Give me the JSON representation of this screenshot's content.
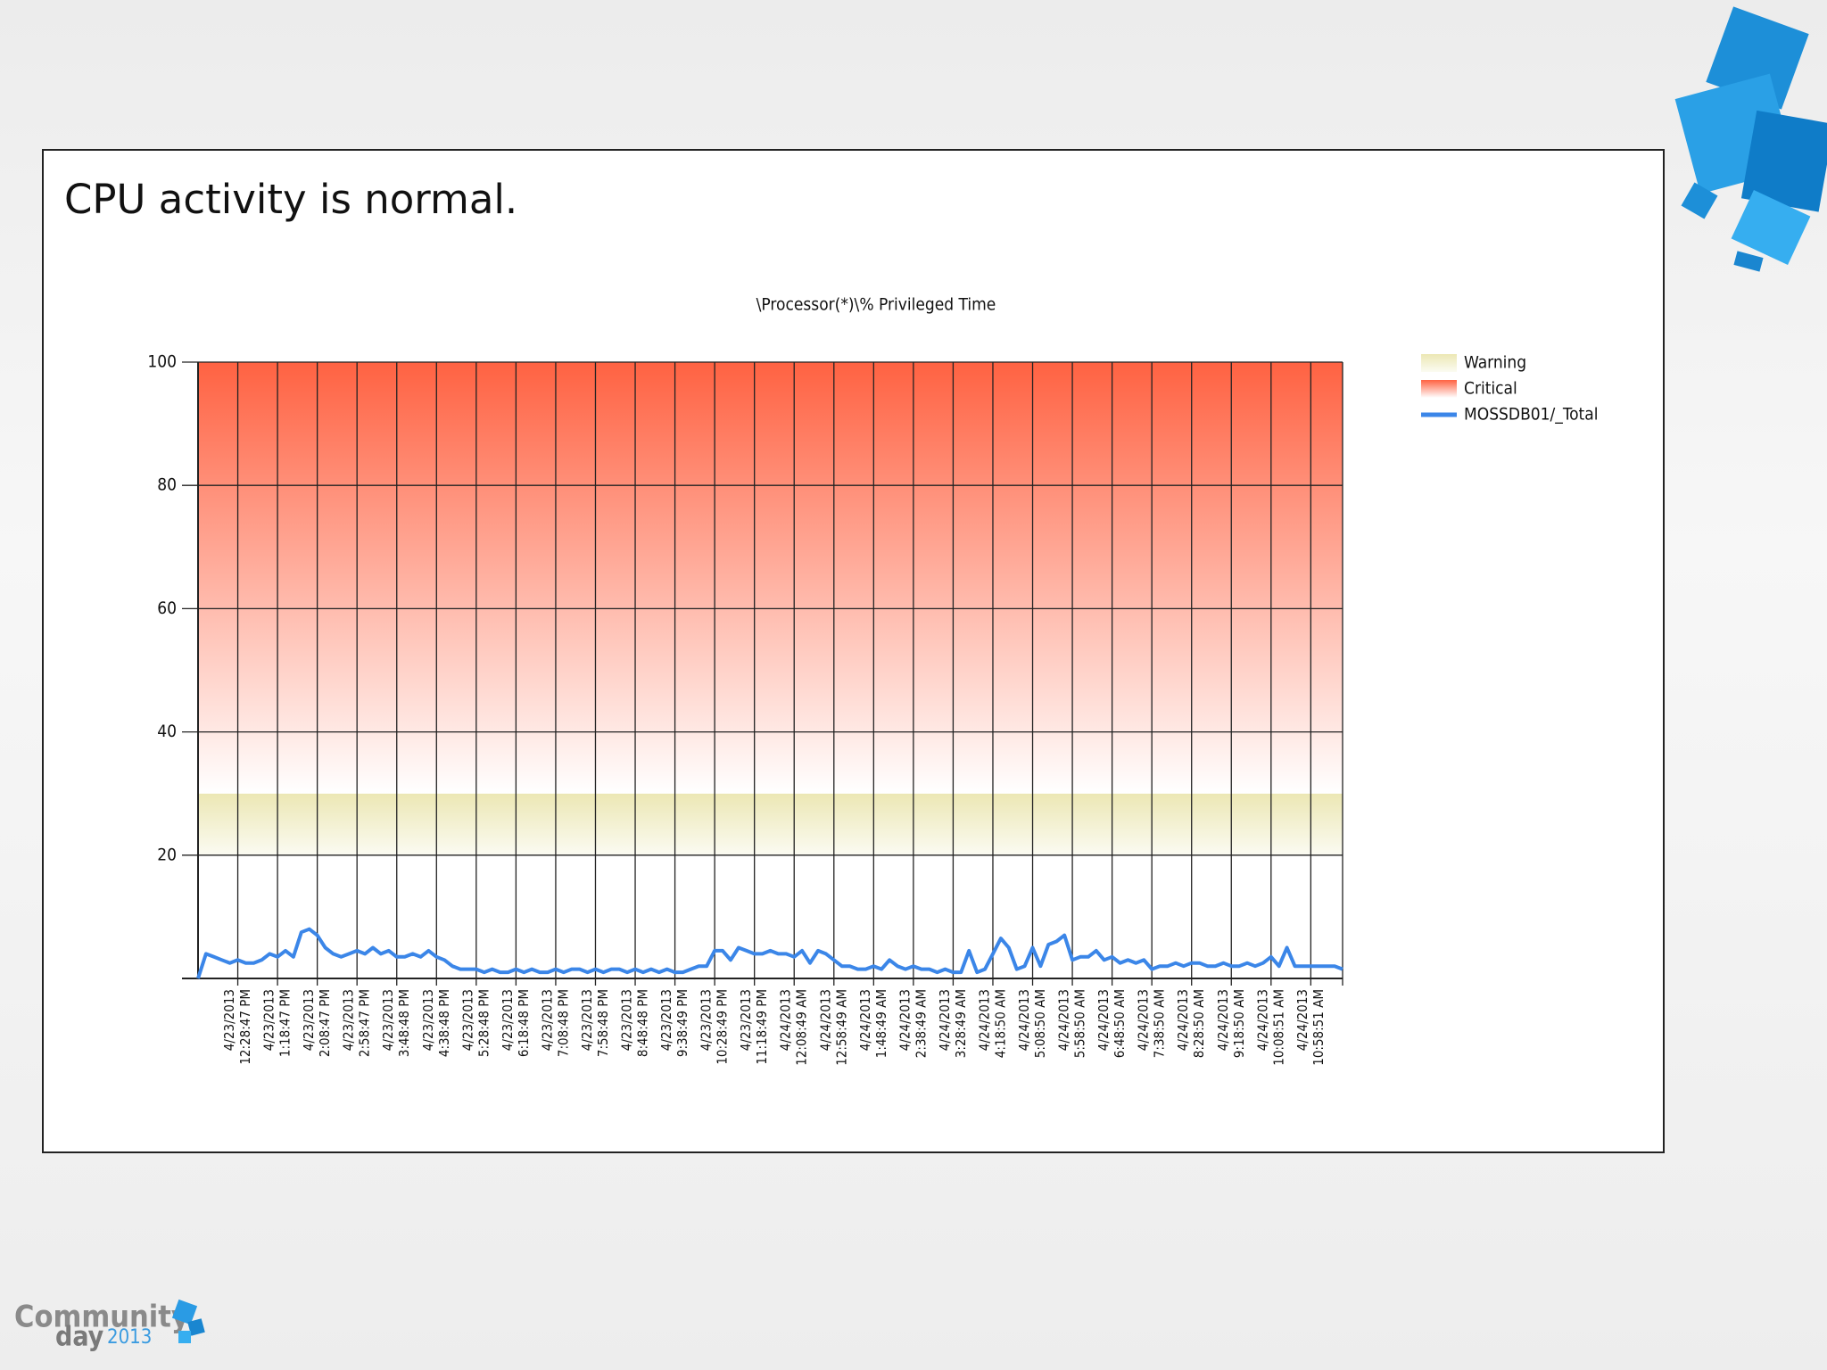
{
  "slide": {
    "heading": "CPU activity is normal."
  },
  "branding": {
    "line1": "Community",
    "line2": "day",
    "year": "2013"
  },
  "chart_data": {
    "type": "line",
    "title": "\\Processor(*)\\% Privileged Time",
    "categories": [
      null,
      null,
      null,
      null,
      null,
      [
        "4/23/2013",
        "12:28:47 PM"
      ],
      null,
      null,
      null,
      null,
      [
        "4/23/2013",
        "1:18:47 PM"
      ],
      null,
      null,
      null,
      null,
      [
        "4/23/2013",
        "2:08:47 PM"
      ],
      null,
      null,
      null,
      null,
      [
        "4/23/2013",
        "2:58:47 PM"
      ],
      null,
      null,
      null,
      null,
      [
        "4/23/2013",
        "3:48:48 PM"
      ],
      null,
      null,
      null,
      null,
      [
        "4/23/2013",
        "4:38:48 PM"
      ],
      null,
      null,
      null,
      null,
      [
        "4/23/2013",
        "5:28:48 PM"
      ],
      null,
      null,
      null,
      null,
      [
        "4/23/2013",
        "6:18:48 PM"
      ],
      null,
      null,
      null,
      null,
      [
        "4/23/2013",
        "7:08:48 PM"
      ],
      null,
      null,
      null,
      null,
      [
        "4/23/2013",
        "7:58:48 PM"
      ],
      null,
      null,
      null,
      null,
      [
        "4/23/2013",
        "8:48:48 PM"
      ],
      null,
      null,
      null,
      null,
      [
        "4/23/2013",
        "9:38:49 PM"
      ],
      null,
      null,
      null,
      null,
      [
        "4/23/2013",
        "10:28:49 PM"
      ],
      null,
      null,
      null,
      null,
      [
        "4/23/2013",
        "11:18:49 PM"
      ],
      null,
      null,
      null,
      null,
      [
        "4/24/2013",
        "12:08:49 AM"
      ],
      null,
      null,
      null,
      null,
      [
        "4/24/2013",
        "12:58:49 AM"
      ],
      null,
      null,
      null,
      null,
      [
        "4/24/2013",
        "1:48:49 AM"
      ],
      null,
      null,
      null,
      null,
      [
        "4/24/2013",
        "2:38:49 AM"
      ],
      null,
      null,
      null,
      null,
      [
        "4/24/2013",
        "3:28:49 AM"
      ],
      null,
      null,
      null,
      null,
      [
        "4/24/2013",
        "4:18:50 AM"
      ],
      null,
      null,
      null,
      null,
      [
        "4/24/2013",
        "5:08:50 AM"
      ],
      null,
      null,
      null,
      null,
      [
        "4/24/2013",
        "5:58:50 AM"
      ],
      null,
      null,
      null,
      null,
      [
        "4/24/2013",
        "6:48:50 AM"
      ],
      null,
      null,
      null,
      null,
      [
        "4/24/2013",
        "7:38:50 AM"
      ],
      null,
      null,
      null,
      null,
      [
        "4/24/2013",
        "8:28:50 AM"
      ],
      null,
      null,
      null,
      null,
      [
        "4/24/2013",
        "9:18:50 AM"
      ],
      null,
      null,
      null,
      null,
      [
        "4/24/2013",
        "10:08:51 AM"
      ],
      null,
      null,
      null,
      null,
      [
        "4/24/2013",
        "10:58:51 AM"
      ],
      null,
      null,
      null,
      null
    ],
    "series": [
      {
        "name": "MOSSDB01/_Total",
        "color": "#3b86e8",
        "values": [
          0,
          4,
          3.5,
          3,
          2.5,
          3,
          2.5,
          2.5,
          3,
          4,
          3.5,
          4.5,
          3.5,
          7.5,
          8,
          7,
          5,
          4,
          3.5,
          4,
          4.5,
          4,
          5,
          4,
          4.5,
          3.5,
          3.5,
          4,
          3.5,
          4.5,
          3.5,
          3,
          2,
          1.5,
          1.5,
          1.5,
          1,
          1.5,
          1,
          1,
          1.5,
          1,
          1.5,
          1,
          1,
          1.5,
          1,
          1.5,
          1.5,
          1,
          1.5,
          1,
          1.5,
          1.5,
          1,
          1.5,
          1,
          1.5,
          1,
          1.5,
          1,
          1,
          1.5,
          2,
          2,
          4.5,
          4.5,
          3,
          5,
          4.5,
          4,
          4,
          4.5,
          4,
          4,
          3.5,
          4.5,
          2.5,
          4.5,
          4,
          3,
          2,
          2,
          1.5,
          1.5,
          2,
          1.5,
          3,
          2,
          1.5,
          2,
          1.5,
          1.5,
          1,
          1.5,
          1,
          1,
          4.5,
          1,
          1.5,
          4,
          6.5,
          5,
          1.5,
          2,
          5,
          2,
          5.5,
          6,
          7,
          3,
          3.5,
          3.5,
          4.5,
          3,
          3.5,
          2.5,
          3,
          2.5,
          3,
          1.5,
          2,
          2,
          2.5,
          2,
          2.5,
          2.5,
          2,
          2,
          2.5,
          2,
          2,
          2.5,
          2,
          2.5,
          3.5,
          2,
          5,
          2,
          2,
          2,
          2,
          2,
          2,
          1.5
        ]
      }
    ],
    "bands": [
      {
        "name": "Warning",
        "from": 20,
        "to": 30,
        "color": "#ece7b4"
      },
      {
        "name": "Critical",
        "from": 30,
        "to": 100,
        "color": "#ff6242"
      }
    ],
    "ylim": [
      0,
      100
    ],
    "yticks": [
      20,
      40,
      60,
      80,
      100
    ],
    "grid": true,
    "legend": "right"
  }
}
